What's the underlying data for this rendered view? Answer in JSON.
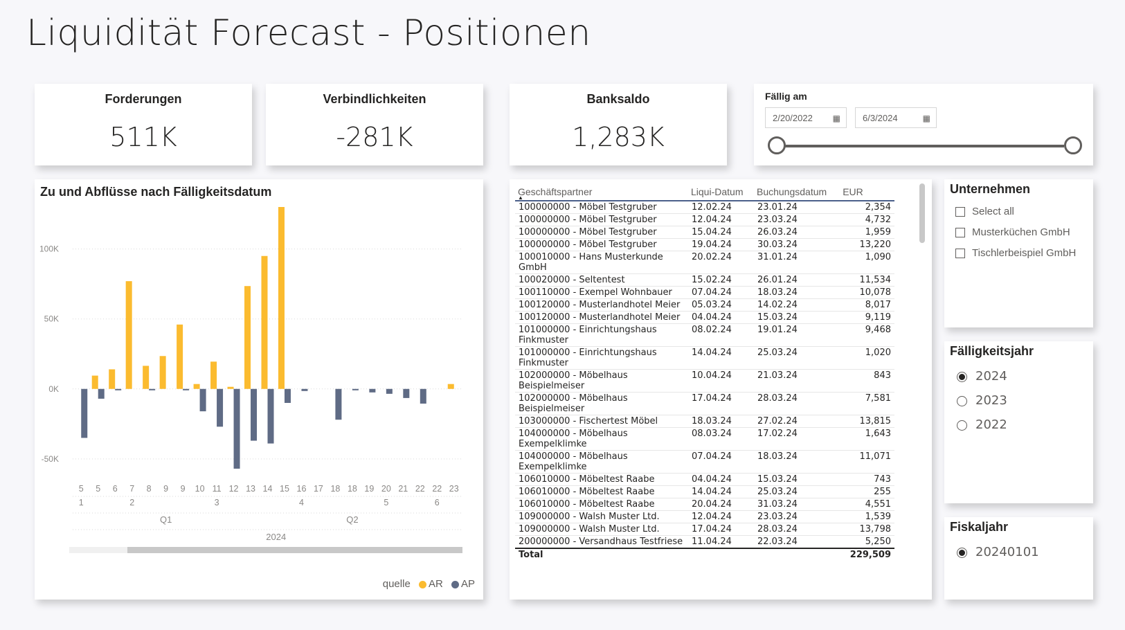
{
  "title": "Liquidität Forecast - Positionen",
  "kpis": {
    "forderungen": {
      "label": "Forderungen",
      "value": "511K"
    },
    "verbindlichkeiten": {
      "label": "Verbindlichkeiten",
      "value": "-281K"
    },
    "banksaldo": {
      "label": "Banksaldo",
      "value": "1,283K"
    }
  },
  "date_slicer": {
    "label": "Fällig am",
    "start": "2/20/2022",
    "end": "6/3/2024",
    "calendar_icon": "calendar-icon"
  },
  "chart_data": {
    "type": "bar",
    "title": "Zu und Abflüsse nach Fälligkeitsdatum",
    "y_ticks": [
      "100K",
      "50K",
      "0K",
      "-50K"
    ],
    "ylim": [
      -58000,
      130000
    ],
    "categories": [
      "5",
      "5",
      "6",
      "7",
      "8",
      "9",
      "9",
      "10",
      "11",
      "12",
      "13",
      "14",
      "15",
      "16",
      "17",
      "18",
      "18",
      "19",
      "20",
      "21",
      "22",
      "22",
      "23"
    ],
    "month_labels": [
      {
        "label": "1",
        "cat_index": 0
      },
      {
        "label": "2",
        "cat_index": 3
      },
      {
        "label": "3",
        "cat_index": 8
      },
      {
        "label": "4",
        "cat_index": 13
      },
      {
        "label": "5",
        "cat_index": 18
      },
      {
        "label": "6",
        "cat_index": 21
      }
    ],
    "quarter_labels": [
      {
        "label": "Q1",
        "cat_index": 5
      },
      {
        "label": "Q2",
        "cat_index": 16
      }
    ],
    "year_label": "2024",
    "series": [
      {
        "name": "AR",
        "color": "#fbbb2f",
        "values": [
          0,
          9500,
          14000,
          77000,
          16500,
          23500,
          46000,
          3500,
          19500,
          1500,
          73500,
          95000,
          130000,
          0,
          0,
          0,
          0,
          0,
          0,
          0,
          0,
          0,
          3500
        ]
      },
      {
        "name": "AP",
        "color": "#5f6b85",
        "values": [
          -35000,
          -7000,
          -1000,
          0,
          -1000,
          0,
          -1000,
          -16000,
          -27000,
          -57000,
          -37000,
          -39000,
          -10000,
          -1500,
          0,
          -22000,
          -1000,
          -2500,
          -3500,
          -6500,
          -10500,
          0,
          0
        ]
      }
    ],
    "legend_title": "quelle",
    "legend": [
      "AR",
      "AP"
    ]
  },
  "table": {
    "columns": [
      "Geschäftspartner",
      "Liqui-Datum",
      "Buchungsdatum",
      "EUR"
    ],
    "rows": [
      [
        "100000000 - Möbel Testgruber",
        "12.02.24",
        "23.01.24",
        "2,354"
      ],
      [
        "100000000 - Möbel Testgruber",
        "12.04.24",
        "23.03.24",
        "4,732"
      ],
      [
        "100000000 - Möbel Testgruber",
        "15.04.24",
        "26.03.24",
        "1,959"
      ],
      [
        "100000000 - Möbel Testgruber",
        "19.04.24",
        "30.03.24",
        "13,220"
      ],
      [
        "100010000 - Hans Musterkunde GmbH",
        "20.02.24",
        "31.01.24",
        "1,090"
      ],
      [
        "100020000 - Seltentest",
        "15.02.24",
        "26.01.24",
        "11,534"
      ],
      [
        "100110000 - Exempel Wohnbauer",
        "07.04.24",
        "18.03.24",
        "10,078"
      ],
      [
        "100120000 - Musterlandhotel Meier",
        "05.03.24",
        "14.02.24",
        "8,017"
      ],
      [
        "100120000 - Musterlandhotel Meier",
        "04.04.24",
        "15.03.24",
        "9,119"
      ],
      [
        "101000000 - Einrichtungshaus Finkmuster",
        "08.02.24",
        "19.01.24",
        "9,468"
      ],
      [
        "101000000 - Einrichtungshaus Finkmuster",
        "14.04.24",
        "25.03.24",
        "1,020"
      ],
      [
        "102000000 - Möbelhaus Beispielmeiser",
        "10.04.24",
        "21.03.24",
        "843"
      ],
      [
        "102000000 - Möbelhaus Beispielmeiser",
        "17.04.24",
        "28.03.24",
        "7,581"
      ],
      [
        "103000000 - Fischertest Möbel",
        "18.03.24",
        "27.02.24",
        "13,815"
      ],
      [
        "104000000 - Möbelhaus Exempelklimke",
        "08.03.24",
        "17.02.24",
        "1,643"
      ],
      [
        "104000000 - Möbelhaus Exempelklimke",
        "07.04.24",
        "18.03.24",
        "11,071"
      ],
      [
        "106010000 - Möbeltest Raabe",
        "04.04.24",
        "15.03.24",
        "743"
      ],
      [
        "106010000 - Möbeltest Raabe",
        "14.04.24",
        "25.03.24",
        "255"
      ],
      [
        "106010000 - Möbeltest Raabe",
        "20.04.24",
        "31.03.24",
        "4,551"
      ],
      [
        "109000000 - Walsh Muster Ltd.",
        "12.04.24",
        "23.03.24",
        "1,539"
      ],
      [
        "109000000 - Walsh Muster Ltd.",
        "17.04.24",
        "28.03.24",
        "13,798"
      ],
      [
        "200000000 - Versandhaus Testfriese",
        "11.04.24",
        "22.03.24",
        "5,250"
      ]
    ],
    "total_label": "Total",
    "total_value": "229,509"
  },
  "unternehmen": {
    "title": "Unternehmen",
    "items": [
      "Select all",
      "Musterküchen GmbH",
      "Tischlerbeispiel GmbH"
    ]
  },
  "faelligkeitsjahr": {
    "title": "Fälligkeitsjahr",
    "items": [
      "2024",
      "2023",
      "2022"
    ],
    "selected": "2024"
  },
  "fiskaljahr": {
    "title": "Fiskaljahr",
    "items": [
      "20240101"
    ],
    "selected": "20240101"
  }
}
